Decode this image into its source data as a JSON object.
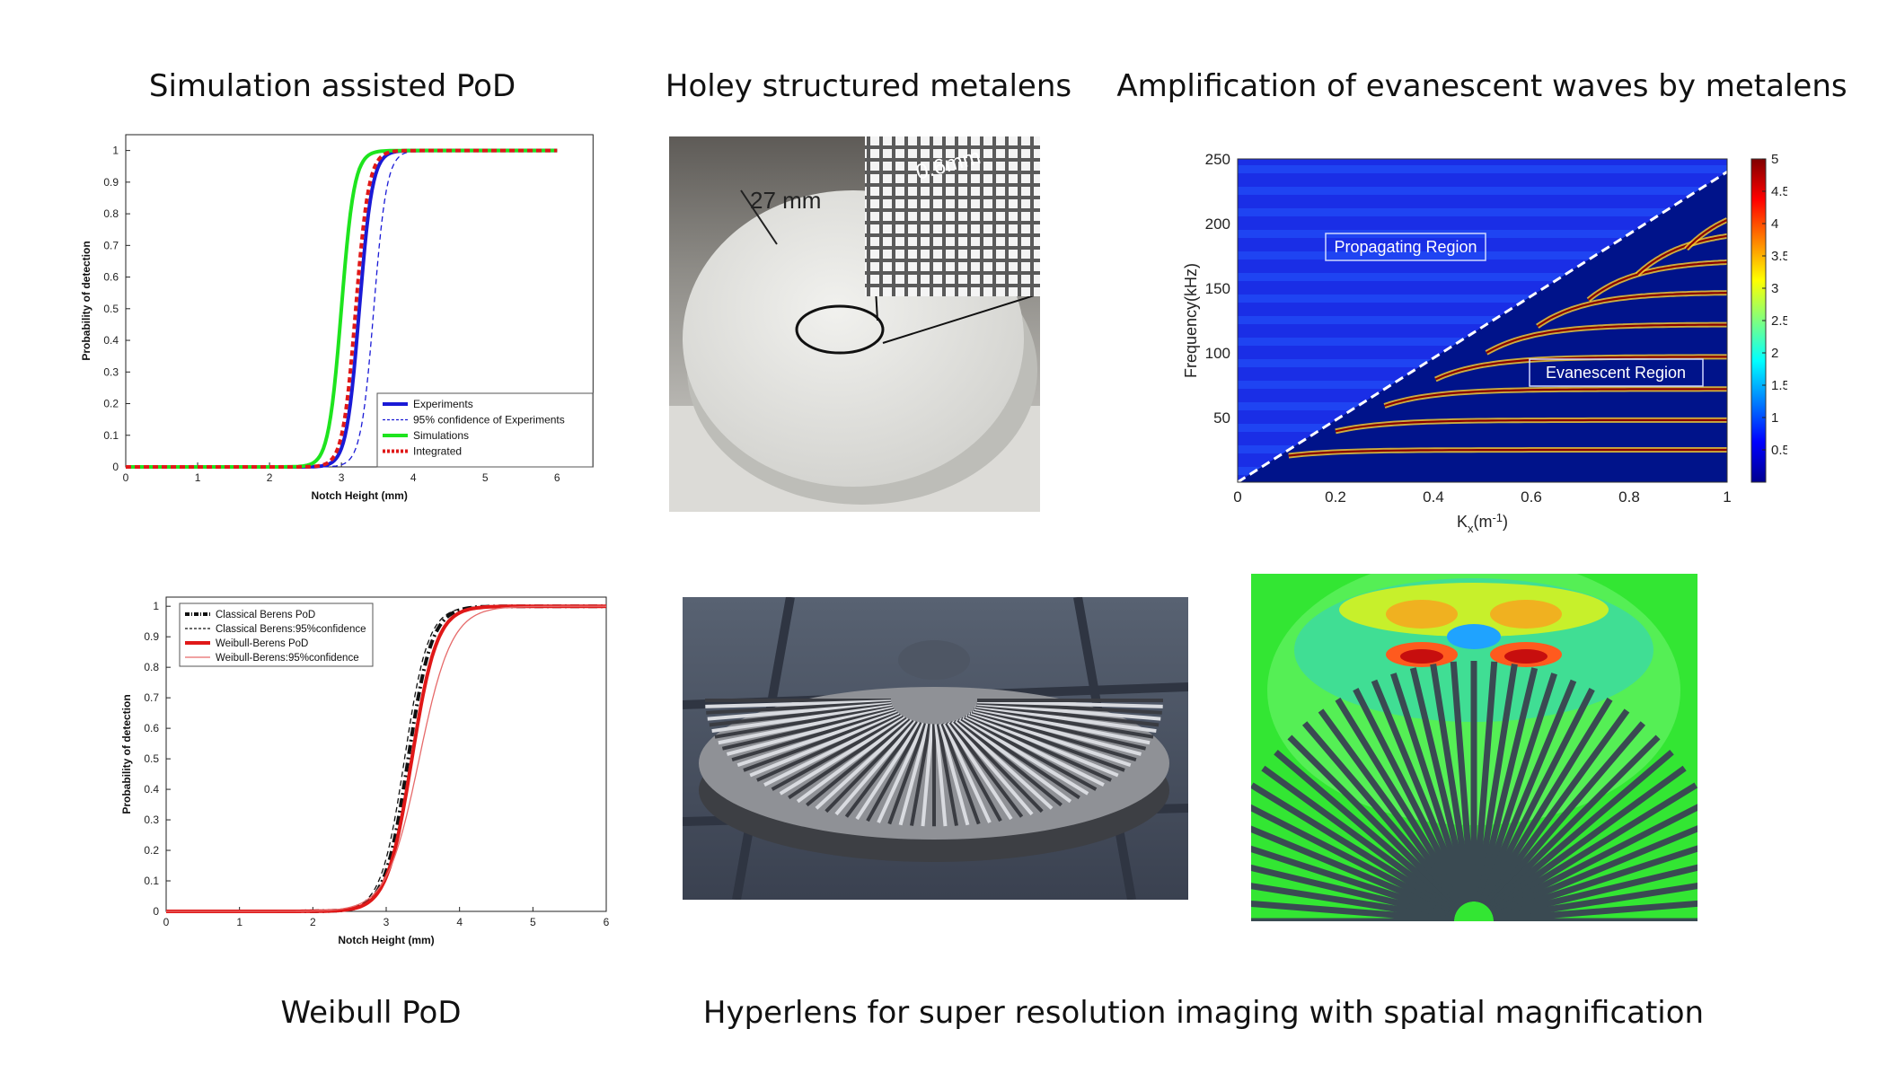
{
  "captions": {
    "sim_pod": "Simulation assisted PoD",
    "holey": "Holey structured metalens",
    "amplification": "Amplification of evanescent waves by metalens",
    "weibull": "Weibull PoD",
    "hyperlens": "Hyperlens for super resolution imaging with spatial magnification"
  },
  "photo_labels": {
    "diameter": "27 mm",
    "hole": "0.6mm"
  },
  "chart_data": [
    {
      "type": "line",
      "id": "simulation-assisted-pod",
      "xlabel": "Notch Height (mm)",
      "ylabel": "Probability of detection",
      "xlim": [
        0,
        6.5
      ],
      "ylim": [
        0,
        1.05
      ],
      "xticks": [
        0,
        1,
        2,
        3,
        4,
        5,
        6
      ],
      "yticks": [
        0,
        0.1,
        0.2,
        0.3,
        0.4,
        0.5,
        0.6,
        0.7,
        0.8,
        0.9,
        1
      ],
      "legend_position": "bottom-right",
      "series": [
        {
          "name": "Experiments",
          "color": "#1a1ad6",
          "style": "solid",
          "width": "thick",
          "mu": 3.25,
          "s": 0.09
        },
        {
          "name": "95% confidence of Experiments",
          "color": "#1a1ad6",
          "style": "dashed",
          "width": "thin",
          "mu": 3.45,
          "s": 0.09
        },
        {
          "name": "Simulations",
          "color": "#1ee41e",
          "style": "solid",
          "width": "thick",
          "mu": 3.0,
          "s": 0.09
        },
        {
          "name": "Integrated",
          "color": "#e01818",
          "style": "dashed",
          "width": "thick",
          "mu": 3.2,
          "s": 0.09
        }
      ]
    },
    {
      "type": "line",
      "id": "weibull-pod",
      "xlabel": "Notch Height (mm)",
      "ylabel": "Probability of detection",
      "xlim": [
        0,
        6
      ],
      "ylim": [
        0,
        1.03
      ],
      "xticks": [
        0,
        1,
        2,
        3,
        4,
        5,
        6
      ],
      "yticks": [
        0,
        0.1,
        0.2,
        0.3,
        0.4,
        0.5,
        0.6,
        0.7,
        0.8,
        0.9,
        1
      ],
      "legend_position": "top-left",
      "series": [
        {
          "name": "Classical Berens PoD",
          "color": "#111111",
          "style": "dashdot",
          "width": "thick",
          "mu": 3.3,
          "s": 0.16
        },
        {
          "name": "Classical Berens:95%confidence",
          "color": "#111111",
          "style": "dashed",
          "width": "thin",
          "mu": 3.25,
          "s": 0.16
        },
        {
          "name": "Weibull-Berens PoD",
          "color": "#e01818",
          "style": "solid",
          "width": "thick",
          "mu": 3.35,
          "s": 0.17
        },
        {
          "name": "Weibull-Berens:95%confidence",
          "color": "#e66a6a",
          "style": "solid",
          "width": "thin",
          "mu": 3.45,
          "s": 0.22
        }
      ]
    },
    {
      "type": "heatmap",
      "id": "dispersion-map",
      "xlabel": "K",
      "xlabel_sub": "x",
      "xlabel_unit_pre": "(m",
      "xlabel_unit_sup": "-1",
      "xlabel_unit_post": ")",
      "ylabel": "Frequency(kHz)",
      "xlim": [
        0,
        1
      ],
      "ylim": [
        0,
        250
      ],
      "xticks": [
        "0",
        "0.2",
        "0.4",
        "0.6",
        "0.8",
        "1"
      ],
      "yticks": [
        "50",
        "100",
        "150",
        "200",
        "250"
      ],
      "colorbar": {
        "range": [
          0,
          5
        ],
        "ticks": [
          "0.5",
          "1",
          "1.5",
          "2",
          "2.5",
          "3",
          "3.5",
          "4",
          "4.5",
          "5"
        ]
      },
      "light_line": {
        "slope_khz_per_unit": 240
      },
      "bands_khz": [
        25,
        48,
        72,
        97,
        122,
        147,
        172,
        196,
        220
      ],
      "regions": {
        "propagating": "Propagating Region",
        "evanescent": "Evanescent  Region"
      }
    }
  ]
}
